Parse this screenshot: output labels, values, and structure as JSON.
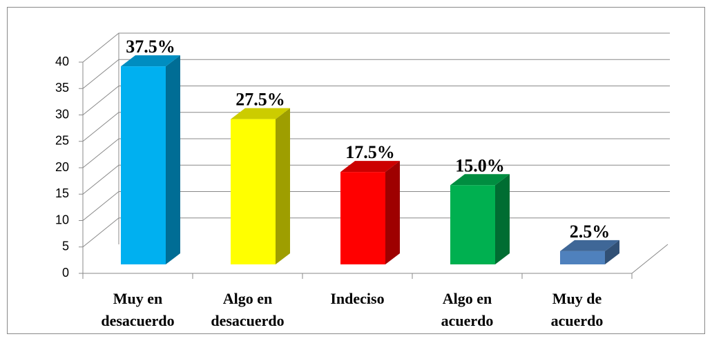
{
  "chart_data": {
    "type": "bar3d",
    "categories": [
      [
        "Muy en",
        "desacuerdo"
      ],
      [
        "Algo en",
        "desacuerdo"
      ],
      [
        "Indeciso"
      ],
      [
        "Algo en",
        "acuerdo"
      ],
      [
        "Muy de",
        "acuerdo"
      ]
    ],
    "values": [
      37.5,
      27.5,
      17.5,
      15.0,
      2.5
    ],
    "value_labels": [
      "37.5%",
      "27.5%",
      "17.5%",
      "15.0%",
      "2.5%"
    ],
    "colors": [
      "#00b0f0",
      "#ffff00",
      "#ff0000",
      "#00b050",
      "#4f81bd"
    ],
    "ylim": [
      0,
      40
    ],
    "yticks": [
      0,
      5,
      10,
      15,
      20,
      25,
      30,
      35,
      40
    ],
    "grid": true
  }
}
